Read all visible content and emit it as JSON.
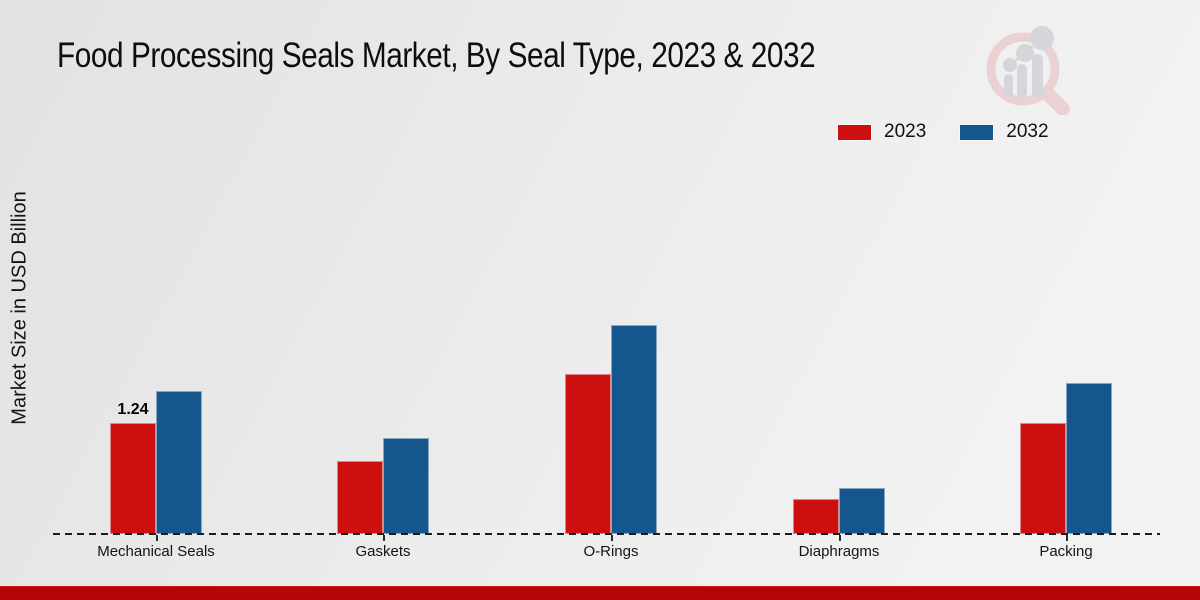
{
  "title": "Food Processing Seals Market, By Seal Type, 2023 & 2032",
  "y_axis_label": "Market Size in USD Billion",
  "legend": {
    "items": [
      {
        "label": "2023",
        "color": "#cc1010"
      },
      {
        "label": "2032",
        "color": "#15568f"
      }
    ]
  },
  "chart_data": {
    "type": "bar",
    "title": "Food Processing Seals Market, By Seal Type, 2023 & 2032",
    "xlabel": "",
    "ylabel": "Market Size in USD Billion",
    "categories": [
      "Mechanical Seals",
      "Gaskets",
      "O-Rings",
      "Diaphragms",
      "Packing"
    ],
    "series": [
      {
        "name": "2023",
        "color": "#cc1010",
        "values": [
          1.24,
          0.82,
          1.79,
          0.39,
          1.24
        ]
      },
      {
        "name": "2032",
        "color": "#15568f",
        "values": [
          1.6,
          1.07,
          2.33,
          0.51,
          1.69
        ]
      }
    ],
    "bar_labels": [
      {
        "category_index": 0,
        "series_index": 0,
        "text": "1.24"
      }
    ],
    "ylim": [
      0,
      2.6
    ],
    "grid": false,
    "y_axis_ticks_visible": false,
    "legend_position": "top-right",
    "baseline_style": "dashed"
  },
  "footer": {
    "strip_color": "#b40606"
  },
  "logo": {
    "name": "market-research-magnifier-chart-logo",
    "ring_color": "#eaccce",
    "bars_color": "#d2d2d7"
  }
}
